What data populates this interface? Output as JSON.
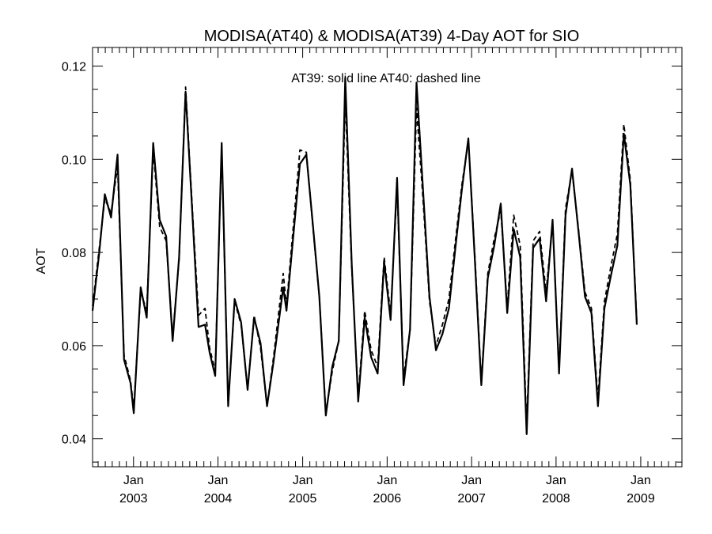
{
  "chart_data": {
    "type": "line",
    "title": "MODISA(AT40) & MODISA(AT39) 4-Day AOT for SIO",
    "xlabel": "",
    "ylabel": "AOT",
    "annotation": "AT39: solid line   AT40: dashed line",
    "xlim": [
      "2002-07-08",
      "2009-06-28"
    ],
    "ylim": [
      0.034,
      0.124
    ],
    "yticks": [
      0.04,
      0.06,
      0.08,
      0.1,
      0.12
    ],
    "ytick_labels": [
      "0.04",
      "0.06",
      "0.08",
      "0.10",
      "0.12"
    ],
    "yminor_step": 0.005,
    "xticks": [
      {
        "date": "2003-01-01",
        "month": "Jan",
        "year": "2003"
      },
      {
        "date": "2004-01-01",
        "month": "Jan",
        "year": "2004"
      },
      {
        "date": "2005-01-01",
        "month": "Jan",
        "year": "2005"
      },
      {
        "date": "2006-01-01",
        "month": "Jan",
        "year": "2006"
      },
      {
        "date": "2007-01-01",
        "month": "Jan",
        "year": "2007"
      },
      {
        "date": "2008-01-01",
        "month": "Jan",
        "year": "2008"
      },
      {
        "date": "2009-01-01",
        "month": "Jan",
        "year": "2009"
      }
    ],
    "grid": false,
    "series": [
      {
        "name": "AT39",
        "style": "solid",
        "points": [
          [
            "2002-07-08",
            0.0675
          ],
          [
            "2002-08-05",
            0.0795
          ],
          [
            "2002-08-30",
            0.0925
          ],
          [
            "2002-09-26",
            0.0875
          ],
          [
            "2002-10-24",
            0.101
          ],
          [
            "2002-11-21",
            0.057
          ],
          [
            "2002-12-19",
            0.052
          ],
          [
            "2003-01-02",
            0.0455
          ],
          [
            "2003-02-01",
            0.0725
          ],
          [
            "2003-02-27",
            0.066
          ],
          [
            "2003-03-27",
            0.1035
          ],
          [
            "2003-04-24",
            0.087
          ],
          [
            "2003-05-22",
            0.0835
          ],
          [
            "2003-06-19",
            0.061
          ],
          [
            "2003-07-17",
            0.079
          ],
          [
            "2003-08-14",
            0.1145
          ],
          [
            "2003-09-11",
            0.0895
          ],
          [
            "2003-10-09",
            0.064
          ],
          [
            "2003-11-06",
            0.0645
          ],
          [
            "2003-11-26",
            0.0585
          ],
          [
            "2003-12-20",
            0.0535
          ],
          [
            "2004-01-17",
            0.1035
          ],
          [
            "2004-02-14",
            0.047
          ],
          [
            "2004-03-13",
            0.07
          ],
          [
            "2004-04-10",
            0.065
          ],
          [
            "2004-05-08",
            0.0505
          ],
          [
            "2004-06-05",
            0.066
          ],
          [
            "2004-07-03",
            0.0605
          ],
          [
            "2004-07-31",
            0.047
          ],
          [
            "2004-08-28",
            0.0565
          ],
          [
            "2004-10-09",
            0.0725
          ],
          [
            "2004-10-23",
            0.0675
          ],
          [
            "2004-12-20",
            0.099
          ],
          [
            "2005-01-17",
            0.101
          ],
          [
            "2005-02-14",
            0.086
          ],
          [
            "2005-03-14",
            0.0705
          ],
          [
            "2005-04-11",
            0.045
          ],
          [
            "2005-05-09",
            0.0555
          ],
          [
            "2005-06-06",
            0.061
          ],
          [
            "2005-07-04",
            0.1175
          ],
          [
            "2005-08-01",
            0.0775
          ],
          [
            "2005-08-29",
            0.048
          ],
          [
            "2005-09-26",
            0.066
          ],
          [
            "2005-10-24",
            0.0575
          ],
          [
            "2005-11-21",
            0.054
          ],
          [
            "2005-12-19",
            0.078
          ],
          [
            "2006-01-16",
            0.0655
          ],
          [
            "2006-02-13",
            0.096
          ],
          [
            "2006-03-13",
            0.0515
          ],
          [
            "2006-04-10",
            0.0635
          ],
          [
            "2006-05-08",
            0.1165
          ],
          [
            "2006-06-05",
            0.0935
          ],
          [
            "2006-07-03",
            0.0705
          ],
          [
            "2006-07-31",
            0.059
          ],
          [
            "2006-08-28",
            0.0625
          ],
          [
            "2006-09-25",
            0.068
          ],
          [
            "2006-10-23",
            0.081
          ],
          [
            "2006-11-20",
            0.0935
          ],
          [
            "2006-12-18",
            0.1045
          ],
          [
            "2007-01-15",
            0.0785
          ],
          [
            "2007-02-12",
            0.0515
          ],
          [
            "2007-03-12",
            0.0745
          ],
          [
            "2007-04-09",
            0.0815
          ],
          [
            "2007-05-07",
            0.0905
          ],
          [
            "2007-06-04",
            0.067
          ],
          [
            "2007-07-02",
            0.085
          ],
          [
            "2007-07-30",
            0.079
          ],
          [
            "2007-08-27",
            0.041
          ],
          [
            "2007-09-24",
            0.081
          ],
          [
            "2007-10-22",
            0.083
          ],
          [
            "2007-11-19",
            0.0695
          ],
          [
            "2007-12-17",
            0.087
          ],
          [
            "2008-01-14",
            0.054
          ],
          [
            "2008-02-11",
            0.088
          ],
          [
            "2008-03-10",
            0.098
          ],
          [
            "2008-04-07",
            0.0845
          ],
          [
            "2008-05-05",
            0.0705
          ],
          [
            "2008-06-02",
            0.067
          ],
          [
            "2008-06-30",
            0.047
          ],
          [
            "2008-07-28",
            0.068
          ],
          [
            "2008-08-25",
            0.075
          ],
          [
            "2008-09-22",
            0.0815
          ],
          [
            "2008-10-20",
            0.1055
          ],
          [
            "2008-11-17",
            0.0945
          ],
          [
            "2008-12-15",
            0.0645
          ]
        ]
      },
      {
        "name": "AT40",
        "style": "dashed",
        "points": [
          [
            "2002-07-08",
            0.0685
          ],
          [
            "2002-08-05",
            0.0805
          ],
          [
            "2002-08-30",
            0.0915
          ],
          [
            "2002-09-26",
            0.0885
          ],
          [
            "2002-10-24",
            0.0985
          ],
          [
            "2002-11-21",
            0.058
          ],
          [
            "2002-12-19",
            0.0525
          ],
          [
            "2003-01-02",
            0.0465
          ],
          [
            "2003-02-01",
            0.0715
          ],
          [
            "2003-02-27",
            0.0675
          ],
          [
            "2003-03-27",
            0.102
          ],
          [
            "2003-04-24",
            0.0855
          ],
          [
            "2003-05-22",
            0.0825
          ],
          [
            "2003-06-19",
            0.062
          ],
          [
            "2003-07-17",
            0.0785
          ],
          [
            "2003-08-14",
            0.1155
          ],
          [
            "2003-09-11",
            0.0905
          ],
          [
            "2003-10-09",
            0.0665
          ],
          [
            "2003-11-06",
            0.068
          ],
          [
            "2003-11-26",
            0.0595
          ],
          [
            "2003-12-20",
            0.0545
          ],
          [
            "2004-01-17",
            0.1025
          ],
          [
            "2004-02-14",
            0.0475
          ],
          [
            "2004-03-13",
            0.0695
          ],
          [
            "2004-04-10",
            0.0645
          ],
          [
            "2004-05-08",
            0.0505
          ],
          [
            "2004-06-05",
            0.0665
          ],
          [
            "2004-07-03",
            0.0595
          ],
          [
            "2004-07-31",
            0.047
          ],
          [
            "2004-08-28",
            0.0575
          ],
          [
            "2004-10-09",
            0.0755
          ],
          [
            "2004-10-23",
            0.0685
          ],
          [
            "2004-12-20",
            0.102
          ],
          [
            "2005-01-17",
            0.1015
          ],
          [
            "2005-02-14",
            0.0855
          ],
          [
            "2005-03-14",
            0.0705
          ],
          [
            "2005-04-11",
            0.0455
          ],
          [
            "2005-05-09",
            0.0545
          ],
          [
            "2005-06-06",
            0.061
          ],
          [
            "2005-07-04",
            0.113
          ],
          [
            "2005-08-01",
            0.0765
          ],
          [
            "2005-08-29",
            0.049
          ],
          [
            "2005-09-26",
            0.0675
          ],
          [
            "2005-10-24",
            0.059
          ],
          [
            "2005-11-21",
            0.0555
          ],
          [
            "2005-12-19",
            0.079
          ],
          [
            "2006-01-16",
            0.067
          ],
          [
            "2006-02-13",
            0.094
          ],
          [
            "2006-03-13",
            0.053
          ],
          [
            "2006-04-10",
            0.0635
          ],
          [
            "2006-05-08",
            0.111
          ],
          [
            "2006-06-05",
            0.0915
          ],
          [
            "2006-07-03",
            0.0695
          ],
          [
            "2006-07-31",
            0.06
          ],
          [
            "2006-08-28",
            0.0645
          ],
          [
            "2006-09-25",
            0.07
          ],
          [
            "2006-10-23",
            0.0825
          ],
          [
            "2006-11-20",
            0.0945
          ],
          [
            "2006-12-18",
            0.104
          ],
          [
            "2007-01-15",
            0.0795
          ],
          [
            "2007-02-12",
            0.052
          ],
          [
            "2007-03-12",
            0.0755
          ],
          [
            "2007-04-09",
            0.083
          ],
          [
            "2007-05-07",
            0.089
          ],
          [
            "2007-06-04",
            0.0685
          ],
          [
            "2007-07-02",
            0.088
          ],
          [
            "2007-07-30",
            0.0815
          ],
          [
            "2007-08-27",
            0.043
          ],
          [
            "2007-09-24",
            0.0825
          ],
          [
            "2007-10-22",
            0.0845
          ],
          [
            "2007-11-19",
            0.0715
          ],
          [
            "2007-12-17",
            0.0865
          ],
          [
            "2008-01-14",
            0.055
          ],
          [
            "2008-02-11",
            0.0895
          ],
          [
            "2008-03-10",
            0.0975
          ],
          [
            "2008-04-07",
            0.085
          ],
          [
            "2008-05-05",
            0.0715
          ],
          [
            "2008-06-02",
            0.068
          ],
          [
            "2008-06-30",
            0.0485
          ],
          [
            "2008-07-28",
            0.0695
          ],
          [
            "2008-08-25",
            0.077
          ],
          [
            "2008-09-22",
            0.084
          ],
          [
            "2008-10-20",
            0.1075
          ],
          [
            "2008-11-17",
            0.0955
          ],
          [
            "2008-12-15",
            0.065
          ]
        ]
      }
    ]
  }
}
